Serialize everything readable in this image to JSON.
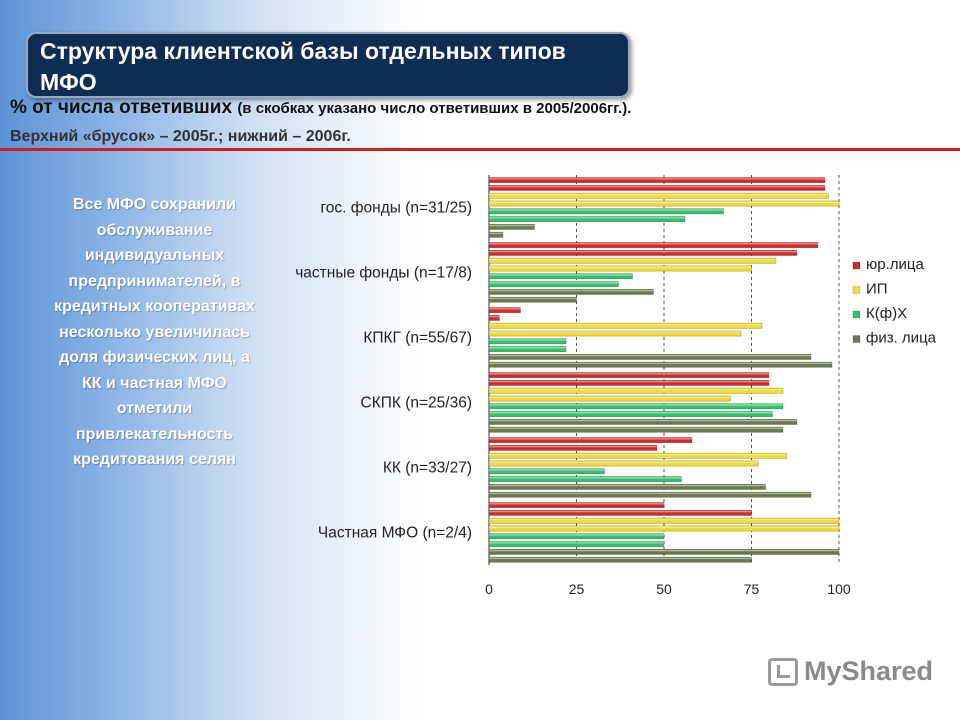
{
  "slide": {
    "title": "Структура клиентской базы отдельных типов МФО",
    "subtitle_main": "% от числа ответивших",
    "subtitle_note": "(в скобках указано число ответивших в 2005/2006гг.).",
    "subtitle2": "Верхний «брусок» – 2005г.; нижний – 2006г.",
    "side_note": "Все МФО сохранили обслуживание индивидуальных предпринимателей, в кредитных кооперативах несколько увеличилась доля физических лиц, а КК и частная МФО отметили привлекательность кредитования селян",
    "watermark": "MyShared"
  },
  "chart_data": {
    "type": "bar",
    "orientation": "horizontal",
    "categories": [
      "гос. фонды (n=31/25)",
      "частные фонды (n=17/8)",
      "КПКГ (n=55/67)",
      "СКПК (n=25/36)",
      "КК (n=33/27)",
      "Частная МФО (n=2/4)"
    ],
    "xlim": [
      0,
      100
    ],
    "x_ticks": [
      "0",
      "25",
      "50",
      "75",
      "100"
    ],
    "grid": true,
    "legend_position": "right",
    "series": [
      {
        "name": "юр.лица",
        "color": "#d42a2a",
        "values_2005": [
          96,
          94,
          9,
          80,
          58,
          50
        ],
        "values_2006": [
          96,
          88,
          3,
          80,
          48,
          75
        ]
      },
      {
        "name": "ИП",
        "color": "#f2dc2a",
        "values_2005": [
          97,
          82,
          78,
          84,
          85,
          100
        ],
        "values_2006": [
          100,
          75,
          72,
          69,
          77,
          100
        ]
      },
      {
        "name": "К(ф)Х",
        "color": "#2fc46c",
        "values_2005": [
          67,
          41,
          22,
          84,
          33,
          50
        ],
        "values_2006": [
          56,
          37,
          22,
          81,
          55,
          50
        ]
      },
      {
        "name": "физ. лица",
        "color": "#6b7a4a",
        "values_2005": [
          13,
          47,
          92,
          88,
          79,
          100
        ],
        "values_2006": [
          4,
          25,
          98,
          84,
          92,
          75
        ]
      }
    ]
  }
}
